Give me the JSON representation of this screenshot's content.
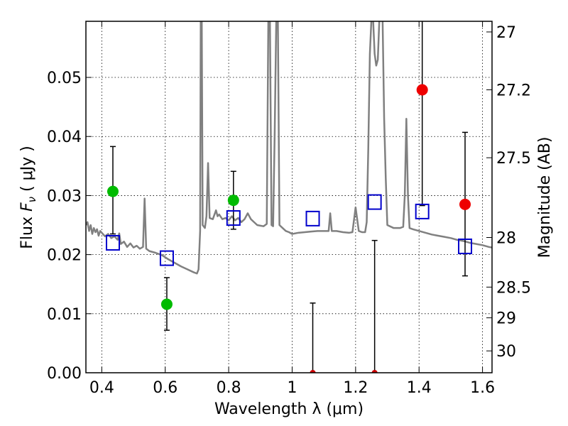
{
  "chart_data": {
    "type": "scatter",
    "xlabel": "Wavelength  λ (μm)",
    "ylabel_prefix": "Flux  ",
    "ylabel_var": "F",
    "ylabel_sub": "ν",
    "ylabel_suffix": "  ( μJy )",
    "y2label": "Magnitude (AB)",
    "xlim": [
      0.35,
      1.63
    ],
    "ylim": [
      0.0,
      0.0595
    ],
    "grid": true,
    "x_ticks": [
      0.4,
      0.6,
      0.8,
      1.0,
      1.2,
      1.4,
      1.6
    ],
    "x_tick_labels": [
      "0.4",
      "0.6",
      "0.8",
      "1",
      "1.2",
      "1.4",
      "1.6"
    ],
    "y_ticks": [
      0.0,
      0.01,
      0.02,
      0.03,
      0.04,
      0.05
    ],
    "y_tick_labels": [
      "0.00",
      "0.01",
      "0.02",
      "0.03",
      "0.04",
      "0.05"
    ],
    "y2_ticks": [
      {
        "label": "27",
        "flux": 0.0577
      },
      {
        "label": "27.2",
        "flux": 0.0479
      },
      {
        "label": "27.5",
        "flux": 0.0364
      },
      {
        "label": "28",
        "flux": 0.0229
      },
      {
        "label": "28.5",
        "flux": 0.0145
      },
      {
        "label": "29",
        "flux": 0.0093
      },
      {
        "label": "30",
        "flux": 0.0037
      }
    ],
    "series": [
      {
        "name": "model spectrum",
        "kind": "line",
        "color": "#808080",
        "points": [
          [
            0.35,
            0.025
          ],
          [
            0.355,
            0.0255
          ],
          [
            0.36,
            0.024
          ],
          [
            0.365,
            0.025
          ],
          [
            0.37,
            0.0235
          ],
          [
            0.375,
            0.0245
          ],
          [
            0.38,
            0.0238
          ],
          [
            0.385,
            0.0243
          ],
          [
            0.39,
            0.0232
          ],
          [
            0.395,
            0.024
          ],
          [
            0.4,
            0.0237
          ],
          [
            0.41,
            0.0231
          ],
          [
            0.42,
            0.0235
          ],
          [
            0.43,
            0.0228
          ],
          [
            0.44,
            0.0231
          ],
          [
            0.45,
            0.0225
          ],
          [
            0.455,
            0.0236
          ],
          [
            0.46,
            0.0218
          ],
          [
            0.47,
            0.0222
          ],
          [
            0.48,
            0.0213
          ],
          [
            0.49,
            0.0219
          ],
          [
            0.5,
            0.0212
          ],
          [
            0.51,
            0.0215
          ],
          [
            0.52,
            0.021
          ],
          [
            0.53,
            0.0213
          ],
          [
            0.535,
            0.0295
          ],
          [
            0.54,
            0.021
          ],
          [
            0.55,
            0.0206
          ],
          [
            0.57,
            0.0203
          ],
          [
            0.59,
            0.0199
          ],
          [
            0.61,
            0.0192
          ],
          [
            0.63,
            0.0186
          ],
          [
            0.65,
            0.018
          ],
          [
            0.67,
            0.0175
          ],
          [
            0.69,
            0.017
          ],
          [
            0.7,
            0.0168
          ],
          [
            0.705,
            0.0175
          ],
          [
            0.71,
            0.024
          ],
          [
            0.712,
            0.061
          ],
          [
            0.715,
            0.061
          ],
          [
            0.718,
            0.025
          ],
          [
            0.725,
            0.0245
          ],
          [
            0.73,
            0.0265
          ],
          [
            0.735,
            0.0355
          ],
          [
            0.74,
            0.0262
          ],
          [
            0.75,
            0.026
          ],
          [
            0.76,
            0.0275
          ],
          [
            0.765,
            0.0265
          ],
          [
            0.77,
            0.0268
          ],
          [
            0.78,
            0.026
          ],
          [
            0.79,
            0.0262
          ],
          [
            0.8,
            0.0258
          ],
          [
            0.81,
            0.0265
          ],
          [
            0.82,
            0.0258
          ],
          [
            0.83,
            0.0262
          ],
          [
            0.84,
            0.0255
          ],
          [
            0.85,
            0.026
          ],
          [
            0.86,
            0.027
          ],
          [
            0.87,
            0.026
          ],
          [
            0.88,
            0.0255
          ],
          [
            0.89,
            0.025
          ],
          [
            0.9,
            0.0249
          ],
          [
            0.91,
            0.0248
          ],
          [
            0.92,
            0.0252
          ],
          [
            0.925,
            0.06
          ],
          [
            0.93,
            0.06
          ],
          [
            0.935,
            0.025
          ],
          [
            0.94,
            0.0248
          ],
          [
            0.945,
            0.0405
          ],
          [
            0.95,
            0.06
          ],
          [
            0.955,
            0.06
          ],
          [
            0.96,
            0.025
          ],
          [
            0.97,
            0.0245
          ],
          [
            0.98,
            0.024
          ],
          [
            0.99,
            0.0238
          ],
          [
            1.0,
            0.0235
          ],
          [
            1.02,
            0.0237
          ],
          [
            1.04,
            0.0238
          ],
          [
            1.06,
            0.0239
          ],
          [
            1.08,
            0.024
          ],
          [
            1.1,
            0.024
          ],
          [
            1.115,
            0.024
          ],
          [
            1.12,
            0.027
          ],
          [
            1.125,
            0.024
          ],
          [
            1.14,
            0.024
          ],
          [
            1.16,
            0.0238
          ],
          [
            1.18,
            0.0237
          ],
          [
            1.19,
            0.0238
          ],
          [
            1.2,
            0.028
          ],
          [
            1.21,
            0.024
          ],
          [
            1.22,
            0.0238
          ],
          [
            1.23,
            0.0238
          ],
          [
            1.235,
            0.0255
          ],
          [
            1.24,
            0.038
          ],
          [
            1.245,
            0.054
          ],
          [
            1.25,
            0.06
          ],
          [
            1.255,
            0.06
          ],
          [
            1.26,
            0.054
          ],
          [
            1.265,
            0.052
          ],
          [
            1.27,
            0.053
          ],
          [
            1.275,
            0.06
          ],
          [
            1.285,
            0.06
          ],
          [
            1.29,
            0.043
          ],
          [
            1.295,
            0.033
          ],
          [
            1.3,
            0.025
          ],
          [
            1.32,
            0.0245
          ],
          [
            1.34,
            0.0245
          ],
          [
            1.35,
            0.0247
          ],
          [
            1.355,
            0.03
          ],
          [
            1.36,
            0.043
          ],
          [
            1.365,
            0.03
          ],
          [
            1.37,
            0.0245
          ],
          [
            1.38,
            0.0243
          ],
          [
            1.4,
            0.024
          ],
          [
            1.42,
            0.0237
          ],
          [
            1.44,
            0.0234
          ],
          [
            1.46,
            0.0232
          ],
          [
            1.48,
            0.023
          ],
          [
            1.5,
            0.0228
          ],
          [
            1.52,
            0.0225
          ],
          [
            1.54,
            0.0223
          ],
          [
            1.56,
            0.022
          ],
          [
            1.58,
            0.0218
          ],
          [
            1.6,
            0.0216
          ],
          [
            1.62,
            0.0213
          ],
          [
            1.63,
            0.0212
          ]
        ]
      },
      {
        "name": "model photometry",
        "kind": "open-square",
        "color": "#0000cc",
        "x": [
          0.435,
          0.605,
          0.815,
          1.065,
          1.26,
          1.41,
          1.545
        ],
        "y": [
          0.022,
          0.0194,
          0.0262,
          0.0261,
          0.0289,
          0.0273,
          0.0214
        ]
      },
      {
        "name": "detections (optical)",
        "kind": "filled-circle",
        "color": "#00bb00",
        "x": [
          0.435,
          0.605,
          0.815
        ],
        "y": [
          0.0307,
          0.0116,
          0.0292
        ],
        "err_low": [
          0.0235,
          0.0072,
          0.0243
        ],
        "err_high": [
          0.0383,
          0.0161,
          0.0341
        ]
      },
      {
        "name": "detections (near-IR)",
        "kind": "filled-circle",
        "color": "#ee0000",
        "x": [
          1.41,
          1.545
        ],
        "y": [
          0.0479,
          0.0285
        ],
        "err_low": [
          0.0283,
          0.0164
        ],
        "err_high": [
          0.06,
          0.0407
        ]
      },
      {
        "name": "non-detections",
        "kind": "error-bar-only",
        "color": "#cc0000",
        "x": [
          1.065,
          1.26
        ],
        "y": [
          0.0,
          0.0
        ],
        "err_low": [
          0.0,
          0.0
        ],
        "err_high": [
          0.0118,
          0.0224
        ]
      }
    ]
  }
}
